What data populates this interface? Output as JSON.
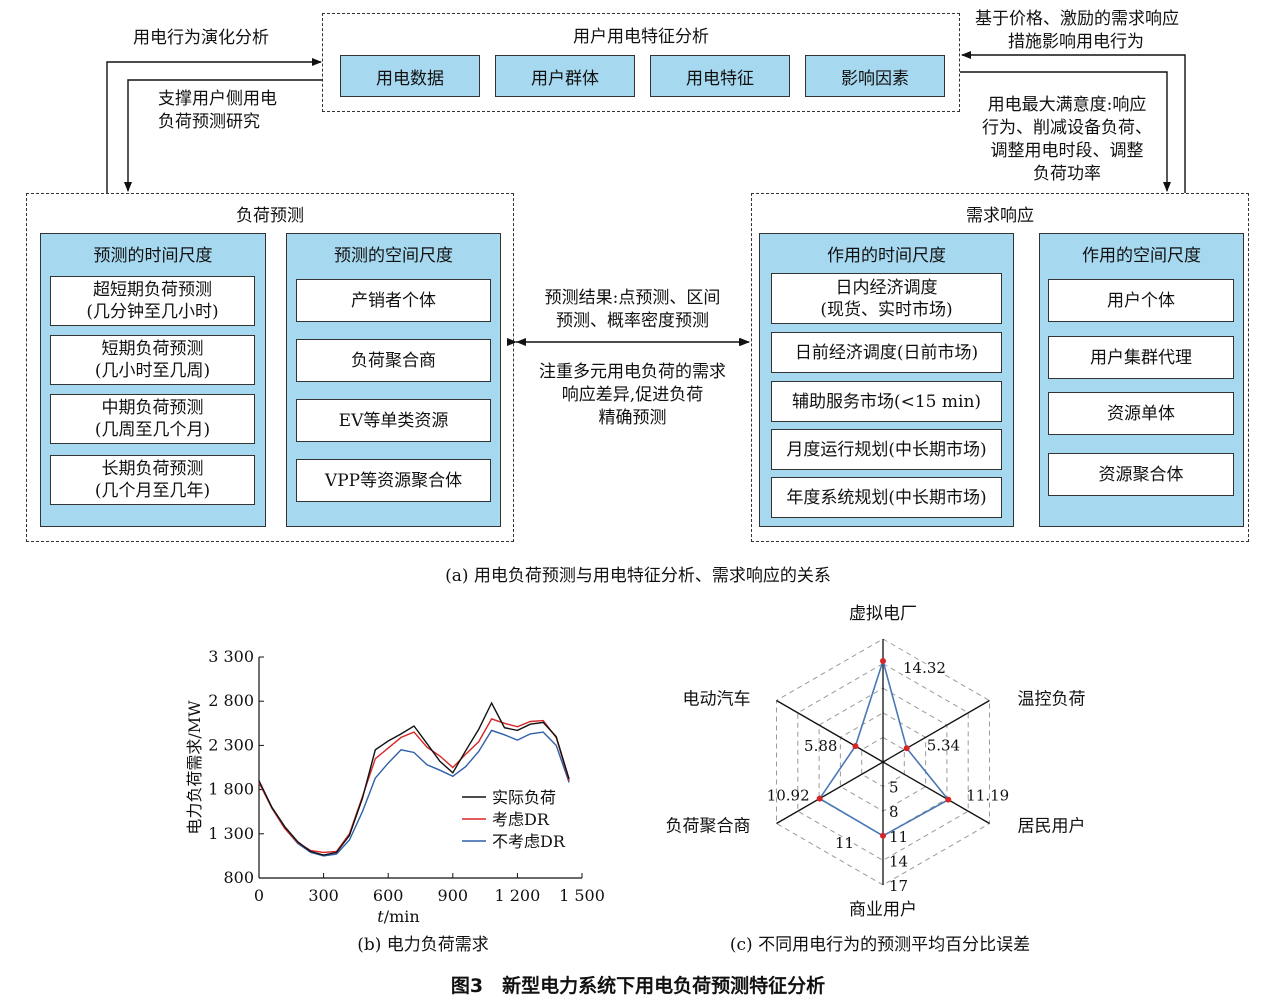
{
  "part_a": {
    "top": {
      "title": "用户用电特征分析",
      "items": [
        "用电数据",
        "用户群体",
        "用电特征",
        "影响因素"
      ]
    },
    "left_arrow_up": "用电行为演化分析",
    "left_arrow_down": [
      "支撑用户侧用电",
      "负荷预测研究"
    ],
    "right_arrow_up": [
      "基于价格、激励的需求响应",
      "措施影响用电行为"
    ],
    "right_arrow_down": [
      "用电最大满意度:响应",
      "行为、削减设备负荷、",
      "调整用电时段、调整",
      "负荷功率"
    ],
    "load_forecast": {
      "title": "负荷预测",
      "time_title": "预测的时间尺度",
      "time_items": [
        [
          "超短期负荷预测",
          "(几分钟至几小时)"
        ],
        [
          "短期负荷预测",
          "(几小时至几周)"
        ],
        [
          "中期负荷预测",
          "(几周至几个月)"
        ],
        [
          "长期负荷预测",
          "(几个月至几年)"
        ]
      ],
      "space_title": "预测的空间尺度",
      "space_items": [
        "产销者个体",
        "负荷聚合商",
        "EV等单类资源",
        "VPP等资源聚合体"
      ]
    },
    "middle_upper": [
      "预测结果:点预测、区间",
      "预测、概率密度预测"
    ],
    "middle_lower": [
      "注重多元用电负荷的需求",
      "响应差异,促进负荷",
      "精确预测"
    ],
    "demand_response": {
      "title": "需求响应",
      "time_title": "作用的时间尺度",
      "time_items": [
        [
          "日内经济调度",
          "(现货、实时市场)"
        ],
        [
          "日前经济调度(日前市场)"
        ],
        [
          "辅助服务市场(<15 min)"
        ],
        [
          "月度运行规划(中长期市场)"
        ],
        [
          "年度系统规划(中长期市场)"
        ]
      ],
      "space_title": "作用的空间尺度",
      "space_items": [
        "用户个体",
        "用户集群代理",
        "资源单体",
        "资源聚合体"
      ]
    },
    "caption": "(a) 用电负荷预测与用电特征分析、需求响应的关系"
  },
  "part_b": {
    "caption": "(b) 电力负荷需求",
    "chart_data": {
      "type": "line",
      "xlabel_italic": "t",
      "xlabel_rest": "/min",
      "ylabel": "电力负荷需求/MW",
      "xlim": [
        0,
        1500
      ],
      "ylim": [
        800,
        3300
      ],
      "xticks": [
        0,
        300,
        600,
        900,
        1200,
        1500
      ],
      "xtick_labels": [
        "0",
        "300",
        "600",
        "900",
        "1 200",
        "1 500"
      ],
      "yticks": [
        800,
        1300,
        1800,
        2300,
        2800,
        3300
      ],
      "ytick_labels": [
        "800",
        "1 300",
        "1 800",
        "2 300",
        "2 800",
        "3 300"
      ],
      "x": [
        0,
        60,
        120,
        180,
        240,
        300,
        360,
        420,
        480,
        540,
        600,
        660,
        720,
        780,
        840,
        900,
        960,
        1020,
        1080,
        1140,
        1200,
        1260,
        1320,
        1380,
        1440
      ],
      "series": [
        {
          "name": "实际负荷",
          "color": "#111111",
          "values": [
            1900,
            1600,
            1380,
            1210,
            1100,
            1060,
            1090,
            1280,
            1700,
            2250,
            2350,
            2430,
            2520,
            2320,
            2120,
            1990,
            2240,
            2480,
            2780,
            2500,
            2470,
            2540,
            2560,
            2400,
            1920
          ]
        },
        {
          "name": "考虑DR",
          "color": "#d62728",
          "values": [
            1880,
            1590,
            1360,
            1200,
            1110,
            1090,
            1100,
            1300,
            1720,
            2150,
            2270,
            2390,
            2450,
            2280,
            2180,
            2050,
            2200,
            2340,
            2600,
            2550,
            2510,
            2570,
            2580,
            2390,
            1900
          ]
        },
        {
          "name": "不考虑DR",
          "color": "#2f5fa8",
          "values": [
            1890,
            1590,
            1360,
            1190,
            1090,
            1050,
            1070,
            1230,
            1550,
            1930,
            2100,
            2250,
            2220,
            2080,
            2020,
            1950,
            2060,
            2230,
            2470,
            2420,
            2360,
            2430,
            2450,
            2300,
            1880
          ]
        }
      ]
    }
  },
  "part_c": {
    "caption": "(c) 不同用电行为的预测平均百分比误差",
    "chart_data": {
      "type": "radar",
      "axes": [
        "虚拟电厂",
        "温控负荷",
        "居民用户",
        "商业用户",
        "负荷聚合商",
        "电动汽车"
      ],
      "values": [
        14.32,
        5.34,
        11.19,
        11,
        10.92,
        5.88
      ],
      "value_labels": [
        "14.32",
        "5.34",
        "11.19",
        "11",
        "10.92",
        "5.88"
      ],
      "rings": [
        5,
        8,
        11,
        14,
        17
      ],
      "ring_labels": [
        "5",
        "8",
        "11",
        "14",
        "17"
      ],
      "range": [
        2,
        17
      ],
      "line_color": "#4a78b5",
      "point_color": "#d62728"
    }
  },
  "figure_title": "图3　新型电力系统下用电负荷预测特征分析"
}
